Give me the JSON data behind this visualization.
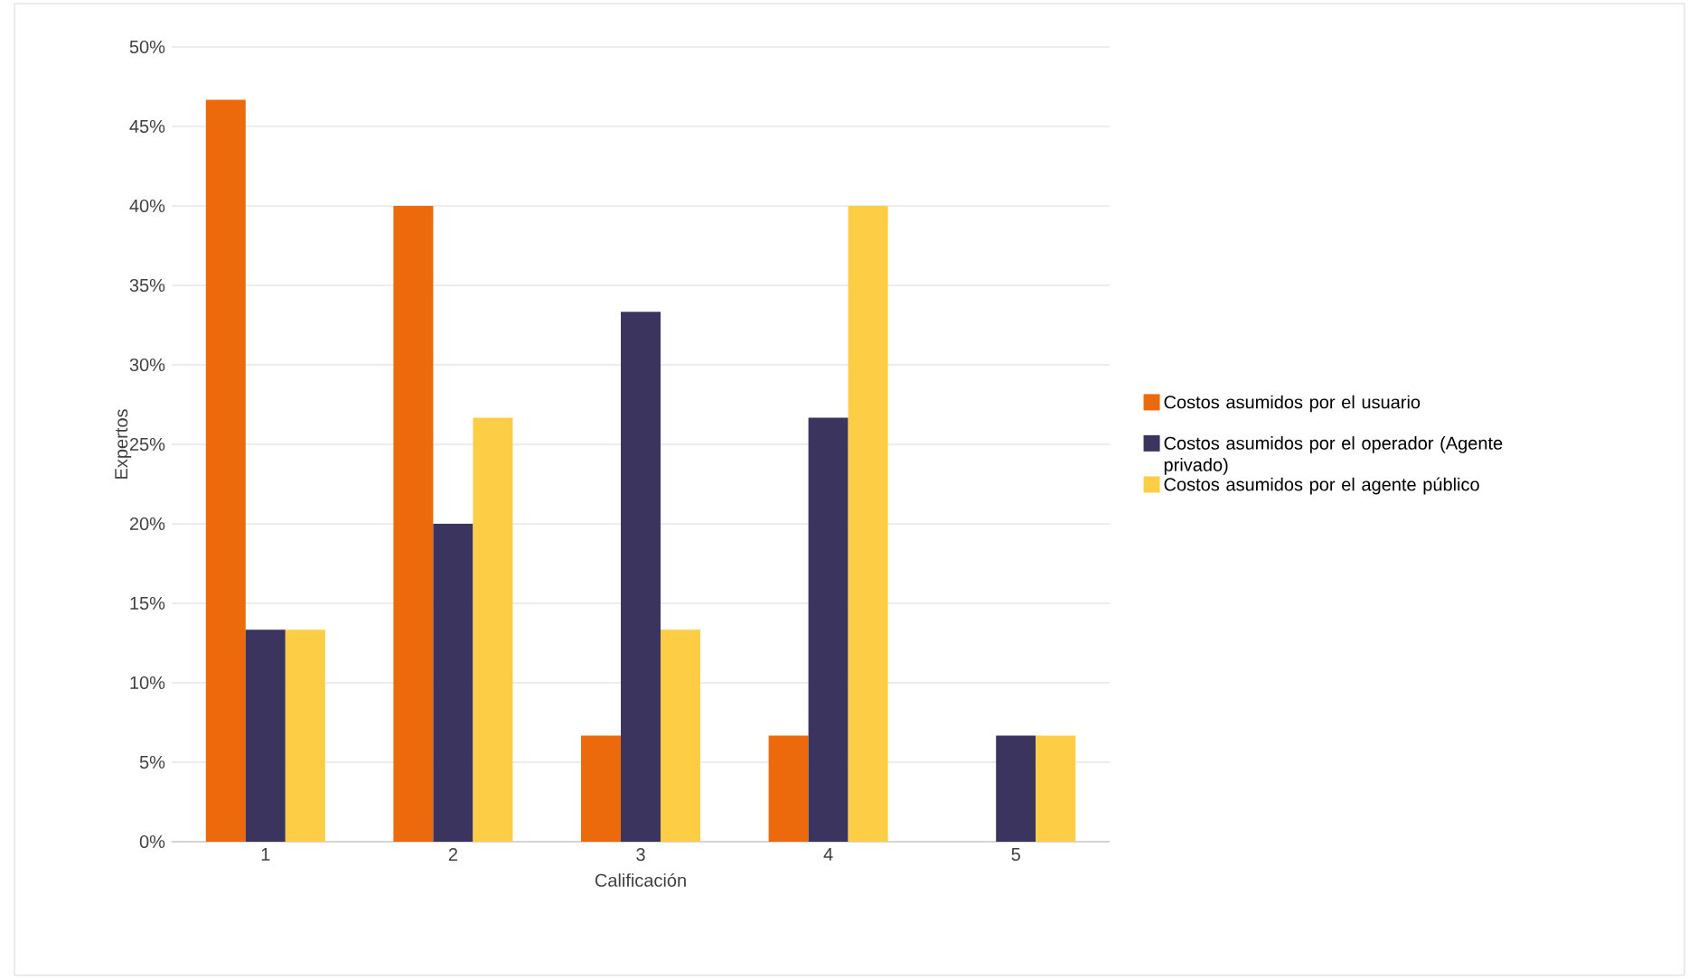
{
  "chart_data": {
    "type": "bar",
    "xlabel": "Calificación",
    "ylabel": "Expertos",
    "categories": [
      "1",
      "2",
      "3",
      "4",
      "5"
    ],
    "series": [
      {
        "name": "Costos asumidos por el usuario",
        "color": "#ec6a0c",
        "values": [
          46.67,
          40,
          6.67,
          6.67,
          0
        ]
      },
      {
        "name": "Costos asumidos por el operador (Agente privado)",
        "color": "#3a345e",
        "values": [
          13.33,
          20,
          33.33,
          26.67,
          6.67
        ]
      },
      {
        "name": "Costos asumidos por el agente público",
        "color": "#fdcd45",
        "values": [
          13.33,
          26.67,
          13.33,
          40,
          6.67
        ]
      }
    ],
    "ylim": [
      0,
      50
    ],
    "yticks": [
      {
        "value": 0,
        "label": "0%"
      },
      {
        "value": 5,
        "label": "5%"
      },
      {
        "value": 10,
        "label": "10%"
      },
      {
        "value": 15,
        "label": "15%"
      },
      {
        "value": 20,
        "label": "20%"
      },
      {
        "value": 25,
        "label": "25%"
      },
      {
        "value": 30,
        "label": "30%"
      },
      {
        "value": 35,
        "label": "35%"
      },
      {
        "value": 40,
        "label": "40%"
      },
      {
        "value": 45,
        "label": "45%"
      },
      {
        "value": 50,
        "label": "50%"
      }
    ],
    "grid": "y",
    "legend": "right"
  }
}
